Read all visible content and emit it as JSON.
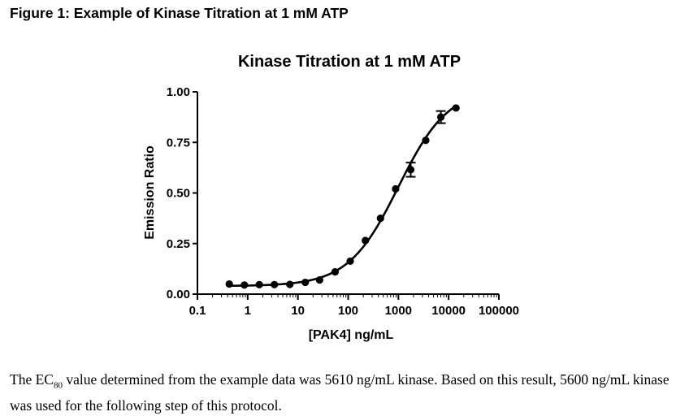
{
  "figure_title": "Figure 1: Example of Kinase Titration at 1 mM ATP",
  "caption": {
    "p1": "The EC",
    "sub": "80",
    "p2": " value determined from the example data was 5610 ng/mL kinase.  Based on this result, 5600 ng/mL kinase was used for the following step of this protocol."
  },
  "chart_data": {
    "type": "scatter",
    "title": "Kinase Titration at 1 mM ATP",
    "xlabel": "[PAK4] ng/mL",
    "ylabel": "Emission Ratio",
    "x_scale": "log",
    "xlim": [
      0.1,
      100000
    ],
    "ylim": [
      0,
      1
    ],
    "x_ticks": [
      0.1,
      1,
      10,
      100,
      1000,
      10000,
      100000
    ],
    "x_tick_labels": [
      "0.1",
      "1",
      "10",
      "100",
      "1000",
      "10000",
      "100000"
    ],
    "y_ticks": [
      0,
      0.25,
      0.5,
      0.75,
      1.0
    ],
    "y_tick_labels": [
      "0.00",
      "0.25",
      "0.50",
      "0.75",
      "1.00"
    ],
    "grid": false,
    "series": [
      {
        "x": [
          0.43,
          0.86,
          1.7,
          3.4,
          6.9,
          14,
          27,
          55,
          110,
          220,
          440,
          880,
          1760,
          3500,
          7000,
          14000
        ],
        "y": [
          0.05,
          0.045,
          0.047,
          0.047,
          0.048,
          0.058,
          0.07,
          0.11,
          0.163,
          0.265,
          0.375,
          0.52,
          0.615,
          0.76,
          0.875,
          0.92
        ],
        "error": [
          0,
          0,
          0,
          0,
          0,
          0,
          0,
          0,
          0,
          0,
          0,
          0,
          0.035,
          0,
          0.03,
          0
        ],
        "marker": "circle",
        "color": "#000000"
      }
    ],
    "fit": {
      "model": "sigmoidal dose-response",
      "bottom": 0.04,
      "top": 1.02,
      "log_ec50": 3.0,
      "hill_slope": 0.87
    }
  }
}
